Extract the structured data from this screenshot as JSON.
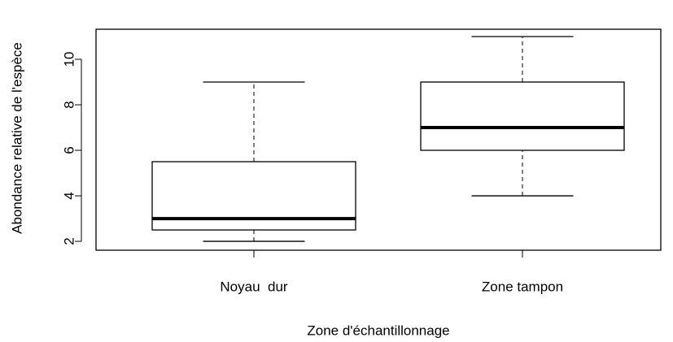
{
  "chart_data": {
    "type": "box",
    "x_label": "Zone d'échantillonnage",
    "y_label": "Abondance relative de l'espèce",
    "categories": [
      "Noyau  dur",
      "Zone tampon"
    ],
    "boxes": [
      {
        "min": 2,
        "q1": 2.5,
        "median": 3,
        "q3": 5.5,
        "max": 9
      },
      {
        "min": 4,
        "q1": 6,
        "median": 7,
        "q3": 9,
        "max": 11
      }
    ],
    "color": "#ffffff",
    "ylim": [
      1.61,
      11.32
    ],
    "yticks": [
      2,
      4,
      6,
      8,
      10
    ]
  }
}
